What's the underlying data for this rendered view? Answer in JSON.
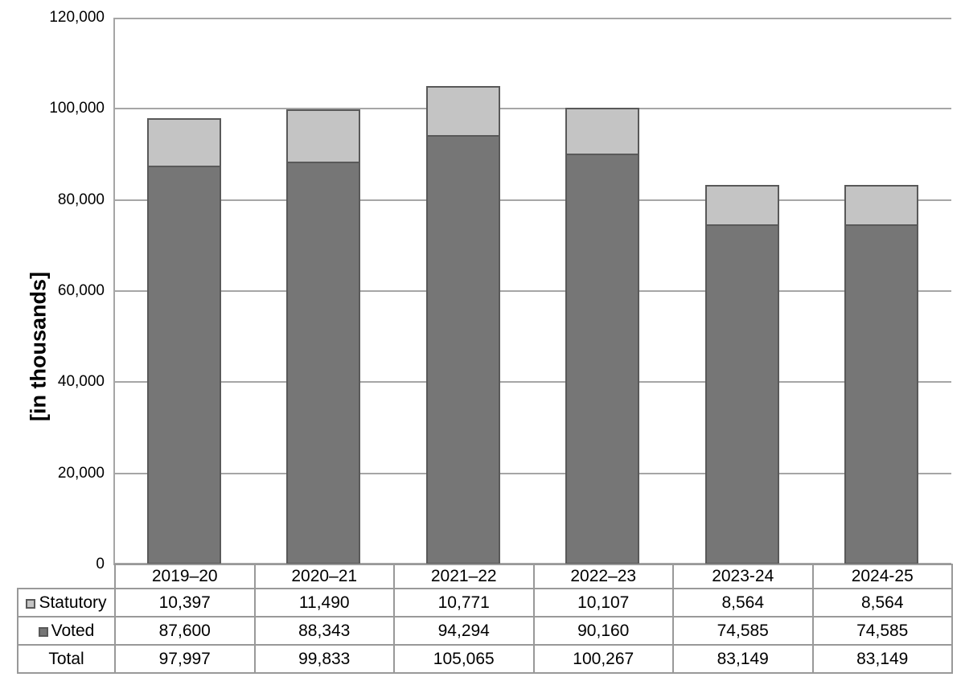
{
  "chart": {
    "ylabel": "[in thousands]"
  },
  "chart_data": {
    "type": "bar",
    "stacked": true,
    "title": "",
    "xlabel": "",
    "ylabel": "[in thousands]",
    "categories": [
      "2019–20",
      "2020–21",
      "2021–22",
      "2022–23",
      "2023-24",
      "2024-25"
    ],
    "series": [
      {
        "name": "Statutory",
        "color": "#c4c4c4",
        "values": [
          10397,
          11490,
          10771,
          10107,
          8564,
          8564
        ]
      },
      {
        "name": "Voted",
        "color": "#767676",
        "values": [
          87600,
          88343,
          94294,
          90160,
          74585,
          74585
        ]
      }
    ],
    "totals": [
      97997,
      99833,
      105065,
      100267,
      83149,
      83149
    ],
    "ylim": [
      0,
      120000
    ],
    "ytick_step": 20000,
    "ytick_labels": [
      "0",
      "20,000",
      "40,000",
      "60,000",
      "80,000",
      "100,000",
      "120,000"
    ],
    "grid": true,
    "grid_color": "#a6a6a6",
    "bar_border_color": "#595959",
    "legend_position": "table-rows-left"
  },
  "table": {
    "header_row": [
      "2019–20",
      "2020–21",
      "2021–22",
      "2022–23",
      "2023-24",
      "2024-25"
    ],
    "rows": [
      {
        "label": "Statutory",
        "swatch": "#c4c4c4",
        "values": [
          "10,397",
          "11,490",
          "10,771",
          "10,107",
          "8,564",
          "8,564"
        ]
      },
      {
        "label": "Voted",
        "swatch": "#767676",
        "values": [
          "87,600",
          "88,343",
          "94,294",
          "90,160",
          "74,585",
          "74,585"
        ]
      },
      {
        "label": "Total",
        "swatch": null,
        "values": [
          "97,997",
          "99,833",
          "105,065",
          "100,267",
          "83,149",
          "83,149"
        ]
      }
    ]
  }
}
